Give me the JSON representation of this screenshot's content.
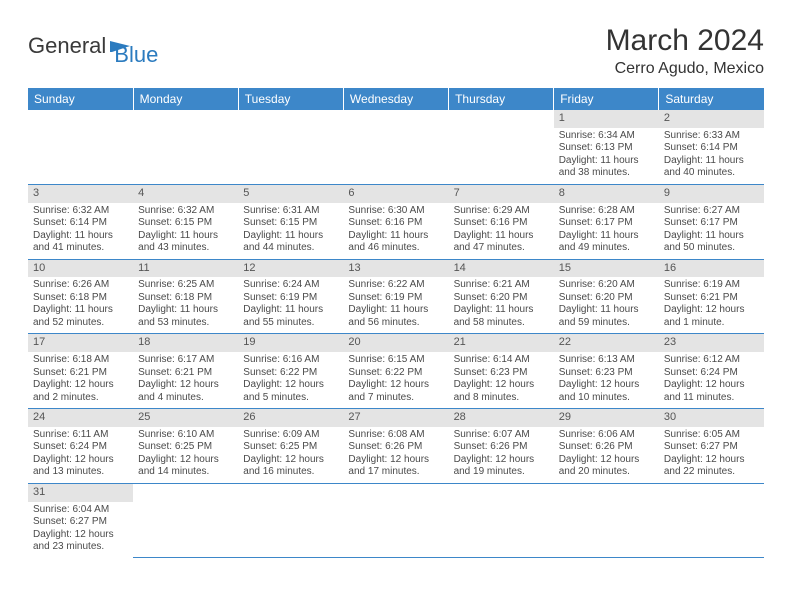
{
  "logo": {
    "text1": "General",
    "text2": "Blue"
  },
  "header": {
    "title": "March 2024",
    "location": "Cerro Agudo, Mexico"
  },
  "styling": {
    "header_bg": "#3d87c9",
    "header_text": "#ffffff",
    "daynum_bg": "#e4e4e4",
    "daynum_text": "#555555",
    "cell_text": "#4a4a4a",
    "row_border": "#3d87c9",
    "page_bg": "#ffffff",
    "title_color": "#333333",
    "font_family": "Arial",
    "title_fontsize_pt": 22,
    "location_fontsize_pt": 12,
    "weekday_fontsize_pt": 9,
    "cell_fontsize_pt": 7.5
  },
  "weekdays": [
    "Sunday",
    "Monday",
    "Tuesday",
    "Wednesday",
    "Thursday",
    "Friday",
    "Saturday"
  ],
  "days": {
    "1": {
      "sunrise": "Sunrise: 6:34 AM",
      "sunset": "Sunset: 6:13 PM",
      "daylight": "Daylight: 11 hours and 38 minutes."
    },
    "2": {
      "sunrise": "Sunrise: 6:33 AM",
      "sunset": "Sunset: 6:14 PM",
      "daylight": "Daylight: 11 hours and 40 minutes."
    },
    "3": {
      "sunrise": "Sunrise: 6:32 AM",
      "sunset": "Sunset: 6:14 PM",
      "daylight": "Daylight: 11 hours and 41 minutes."
    },
    "4": {
      "sunrise": "Sunrise: 6:32 AM",
      "sunset": "Sunset: 6:15 PM",
      "daylight": "Daylight: 11 hours and 43 minutes."
    },
    "5": {
      "sunrise": "Sunrise: 6:31 AM",
      "sunset": "Sunset: 6:15 PM",
      "daylight": "Daylight: 11 hours and 44 minutes."
    },
    "6": {
      "sunrise": "Sunrise: 6:30 AM",
      "sunset": "Sunset: 6:16 PM",
      "daylight": "Daylight: 11 hours and 46 minutes."
    },
    "7": {
      "sunrise": "Sunrise: 6:29 AM",
      "sunset": "Sunset: 6:16 PM",
      "daylight": "Daylight: 11 hours and 47 minutes."
    },
    "8": {
      "sunrise": "Sunrise: 6:28 AM",
      "sunset": "Sunset: 6:17 PM",
      "daylight": "Daylight: 11 hours and 49 minutes."
    },
    "9": {
      "sunrise": "Sunrise: 6:27 AM",
      "sunset": "Sunset: 6:17 PM",
      "daylight": "Daylight: 11 hours and 50 minutes."
    },
    "10": {
      "sunrise": "Sunrise: 6:26 AM",
      "sunset": "Sunset: 6:18 PM",
      "daylight": "Daylight: 11 hours and 52 minutes."
    },
    "11": {
      "sunrise": "Sunrise: 6:25 AM",
      "sunset": "Sunset: 6:18 PM",
      "daylight": "Daylight: 11 hours and 53 minutes."
    },
    "12": {
      "sunrise": "Sunrise: 6:24 AM",
      "sunset": "Sunset: 6:19 PM",
      "daylight": "Daylight: 11 hours and 55 minutes."
    },
    "13": {
      "sunrise": "Sunrise: 6:22 AM",
      "sunset": "Sunset: 6:19 PM",
      "daylight": "Daylight: 11 hours and 56 minutes."
    },
    "14": {
      "sunrise": "Sunrise: 6:21 AM",
      "sunset": "Sunset: 6:20 PM",
      "daylight": "Daylight: 11 hours and 58 minutes."
    },
    "15": {
      "sunrise": "Sunrise: 6:20 AM",
      "sunset": "Sunset: 6:20 PM",
      "daylight": "Daylight: 11 hours and 59 minutes."
    },
    "16": {
      "sunrise": "Sunrise: 6:19 AM",
      "sunset": "Sunset: 6:21 PM",
      "daylight": "Daylight: 12 hours and 1 minute."
    },
    "17": {
      "sunrise": "Sunrise: 6:18 AM",
      "sunset": "Sunset: 6:21 PM",
      "daylight": "Daylight: 12 hours and 2 minutes."
    },
    "18": {
      "sunrise": "Sunrise: 6:17 AM",
      "sunset": "Sunset: 6:21 PM",
      "daylight": "Daylight: 12 hours and 4 minutes."
    },
    "19": {
      "sunrise": "Sunrise: 6:16 AM",
      "sunset": "Sunset: 6:22 PM",
      "daylight": "Daylight: 12 hours and 5 minutes."
    },
    "20": {
      "sunrise": "Sunrise: 6:15 AM",
      "sunset": "Sunset: 6:22 PM",
      "daylight": "Daylight: 12 hours and 7 minutes."
    },
    "21": {
      "sunrise": "Sunrise: 6:14 AM",
      "sunset": "Sunset: 6:23 PM",
      "daylight": "Daylight: 12 hours and 8 minutes."
    },
    "22": {
      "sunrise": "Sunrise: 6:13 AM",
      "sunset": "Sunset: 6:23 PM",
      "daylight": "Daylight: 12 hours and 10 minutes."
    },
    "23": {
      "sunrise": "Sunrise: 6:12 AM",
      "sunset": "Sunset: 6:24 PM",
      "daylight": "Daylight: 12 hours and 11 minutes."
    },
    "24": {
      "sunrise": "Sunrise: 6:11 AM",
      "sunset": "Sunset: 6:24 PM",
      "daylight": "Daylight: 12 hours and 13 minutes."
    },
    "25": {
      "sunrise": "Sunrise: 6:10 AM",
      "sunset": "Sunset: 6:25 PM",
      "daylight": "Daylight: 12 hours and 14 minutes."
    },
    "26": {
      "sunrise": "Sunrise: 6:09 AM",
      "sunset": "Sunset: 6:25 PM",
      "daylight": "Daylight: 12 hours and 16 minutes."
    },
    "27": {
      "sunrise": "Sunrise: 6:08 AM",
      "sunset": "Sunset: 6:26 PM",
      "daylight": "Daylight: 12 hours and 17 minutes."
    },
    "28": {
      "sunrise": "Sunrise: 6:07 AM",
      "sunset": "Sunset: 6:26 PM",
      "daylight": "Daylight: 12 hours and 19 minutes."
    },
    "29": {
      "sunrise": "Sunrise: 6:06 AM",
      "sunset": "Sunset: 6:26 PM",
      "daylight": "Daylight: 12 hours and 20 minutes."
    },
    "30": {
      "sunrise": "Sunrise: 6:05 AM",
      "sunset": "Sunset: 6:27 PM",
      "daylight": "Daylight: 12 hours and 22 minutes."
    },
    "31": {
      "sunrise": "Sunrise: 6:04 AM",
      "sunset": "Sunset: 6:27 PM",
      "daylight": "Daylight: 12 hours and 23 minutes."
    }
  },
  "grid": [
    [
      null,
      null,
      null,
      null,
      null,
      "1",
      "2"
    ],
    [
      "3",
      "4",
      "5",
      "6",
      "7",
      "8",
      "9"
    ],
    [
      "10",
      "11",
      "12",
      "13",
      "14",
      "15",
      "16"
    ],
    [
      "17",
      "18",
      "19",
      "20",
      "21",
      "22",
      "23"
    ],
    [
      "24",
      "25",
      "26",
      "27",
      "28",
      "29",
      "30"
    ],
    [
      "31",
      null,
      null,
      null,
      null,
      null,
      null
    ]
  ]
}
